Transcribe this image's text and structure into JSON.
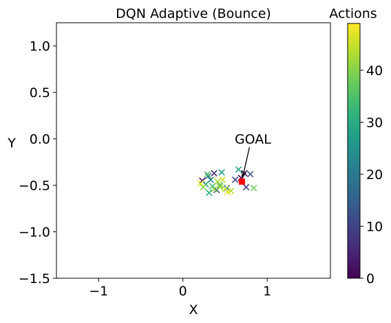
{
  "chart_data": {
    "type": "scatter",
    "title": "DQN Adaptive (Bounce)",
    "xlabel": "X",
    "ylabel": "Y",
    "xlim": [
      -1.5,
      1.75
    ],
    "ylim": [
      -1.5,
      1.25
    ],
    "xticks": [
      -1,
      0,
      1
    ],
    "xtick_labels": [
      "−1",
      "0",
      "1"
    ],
    "yticks": [
      1.0,
      0.5,
      0.0,
      -0.5,
      -1.0,
      -1.5
    ],
    "ytick_labels": [
      "1.0",
      "0.5",
      "0.0",
      "−0.5",
      "−1.0",
      "−1.5"
    ],
    "marker": "x",
    "colormap": "viridis",
    "colorbar": {
      "label": "Actions",
      "range": [
        0,
        49
      ],
      "ticks": [
        0,
        10,
        20,
        30,
        40
      ],
      "tick_labels": [
        "0",
        "10",
        "20",
        "30",
        "40"
      ]
    },
    "annotation": {
      "text": "GOAL",
      "x": 0.7,
      "y": -0.46
    },
    "goal": {
      "x": 0.7,
      "y": -0.46,
      "color": "#ff0000"
    },
    "points": [
      {
        "x": 0.23,
        "y": -0.45,
        "action": 2
      },
      {
        "x": 0.37,
        "y": -0.37,
        "action": 6
      },
      {
        "x": 0.73,
        "y": -0.37,
        "action": 4
      },
      {
        "x": 0.69,
        "y": -0.42,
        "action": 1
      },
      {
        "x": 0.75,
        "y": -0.52,
        "action": 8
      },
      {
        "x": 0.8,
        "y": -0.38,
        "action": 14
      },
      {
        "x": 0.4,
        "y": -0.55,
        "action": 12
      },
      {
        "x": 0.62,
        "y": -0.44,
        "action": 10
      },
      {
        "x": 0.3,
        "y": -0.4,
        "action": 17
      },
      {
        "x": 0.52,
        "y": -0.53,
        "action": 20
      },
      {
        "x": 0.33,
        "y": -0.44,
        "action": 22
      },
      {
        "x": 0.46,
        "y": -0.36,
        "action": 26
      },
      {
        "x": 0.27,
        "y": -0.49,
        "action": 28
      },
      {
        "x": 0.66,
        "y": -0.33,
        "action": 30
      },
      {
        "x": 0.31,
        "y": -0.58,
        "action": 31
      },
      {
        "x": 0.35,
        "y": -0.51,
        "action": 33
      },
      {
        "x": 0.44,
        "y": -0.5,
        "action": 34
      },
      {
        "x": 0.29,
        "y": -0.38,
        "action": 36
      },
      {
        "x": 0.84,
        "y": -0.53,
        "action": 38
      },
      {
        "x": 0.24,
        "y": -0.52,
        "action": 40
      },
      {
        "x": 0.41,
        "y": -0.46,
        "action": 42
      },
      {
        "x": 0.57,
        "y": -0.56,
        "action": 44
      },
      {
        "x": 0.47,
        "y": -0.44,
        "action": 45
      },
      {
        "x": 0.21,
        "y": -0.48,
        "action": 47
      },
      {
        "x": 0.53,
        "y": -0.57,
        "action": 48
      },
      {
        "x": 0.5,
        "y": -0.54,
        "action": 46
      },
      {
        "x": 0.44,
        "y": -0.52,
        "action": 43
      },
      {
        "x": 0.37,
        "y": -0.54,
        "action": 41
      }
    ]
  }
}
